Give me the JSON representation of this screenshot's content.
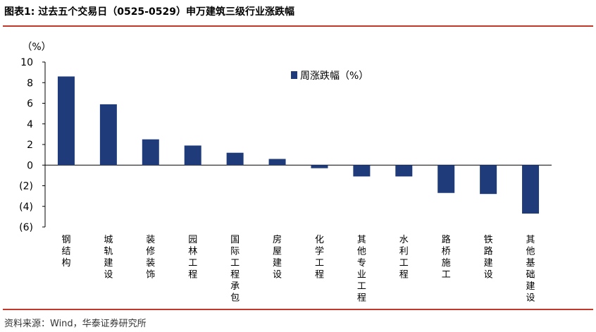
{
  "header": {
    "title": "图表1:  过去五个交易日（0525-0529）申万建筑三级行业涨跌幅"
  },
  "footer": {
    "source": "资料来源：Wind，华泰证券研究所"
  },
  "colors": {
    "bar": "#1f3b7a",
    "rule": "#c0392b"
  },
  "chart_data": {
    "type": "bar",
    "title": "",
    "ylabel": "（%）",
    "xlabel": "",
    "ylim": [
      -6,
      10
    ],
    "yticks": [
      10,
      8,
      6,
      4,
      2,
      0,
      -2,
      -4,
      -6
    ],
    "ytick_labels": [
      "10",
      "8",
      "6",
      "4",
      "2",
      "0",
      "(2)",
      "(4)",
      "(6)"
    ],
    "categories": [
      "钢结构",
      "城轨建设",
      "装修装饰",
      "园林工程",
      "国际工程承包",
      "房屋建设",
      "化学工程",
      "其他专业工程",
      "水利工程",
      "路桥施工",
      "铁路建设",
      "其他基础建设"
    ],
    "series": [
      {
        "name": "周涨跌幅（%）",
        "values": [
          8.6,
          5.9,
          2.5,
          1.9,
          1.2,
          0.6,
          -0.3,
          -1.1,
          -1.1,
          -2.7,
          -2.8,
          -4.7
        ]
      }
    ],
    "legend": "top-center",
    "grid": false
  }
}
